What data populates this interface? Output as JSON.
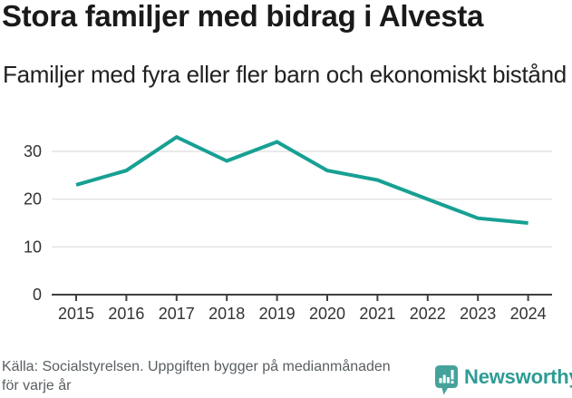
{
  "header": {
    "title": "Stora familjer med bidrag i Alvesta",
    "subtitle": "Familjer med fyra eller fler barn och ekonomiskt bistånd"
  },
  "chart_data": {
    "type": "line",
    "title": "Stora familjer med bidrag i Alvesta",
    "subtitle": "Familjer med fyra eller fler barn och ekonomiskt bistånd",
    "categories": [
      "2015",
      "2016",
      "2017",
      "2018",
      "2019",
      "2020",
      "2021",
      "2022",
      "2023",
      "2024"
    ],
    "values": [
      23,
      26,
      33,
      28,
      32,
      26,
      24,
      20,
      16,
      15
    ],
    "xlabel": "",
    "ylabel": "",
    "ylim": [
      0,
      35
    ],
    "yticks": [
      0,
      10,
      20,
      30
    ],
    "grid": "horizontal-light-gray",
    "legend": "none",
    "line_color": "#17a093"
  },
  "footer": {
    "source": "Källa: Socialstyrelsen. Uppgiften bygger på medianmånaden för varje år",
    "brand": "Newsworthy"
  },
  "colors": {
    "line": "#17a093",
    "gridline": "#e3e3e3",
    "axis": "#3f3f3f",
    "tick_text": "#333333",
    "title_text": "#1a1a1a",
    "subtitle_text": "#212121",
    "footer_text": "#595f63",
    "brand_teal": "#2e9c95",
    "icon_teal": "#45a29b"
  }
}
